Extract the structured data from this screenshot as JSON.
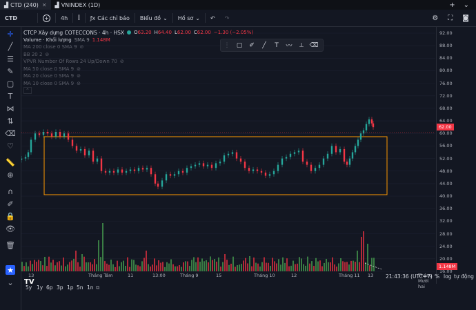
{
  "tabs": [
    {
      "label": "CTD (240)"
    },
    {
      "label": "VNINDEX (1D)"
    }
  ],
  "toolbar": {
    "symbol": "CTD",
    "interval": "4h",
    "indicators": "Các chỉ báo",
    "layout": "Biểu đồ",
    "templates": "Hồ sơ"
  },
  "legend": {
    "title": "CTCP Xây dựng COTECCONS · 4h · HSX",
    "open_label": "O",
    "open": "63.20",
    "high_label": "H",
    "high": "64.40",
    "low_label": "L",
    "low": "62.00",
    "close_label": "C",
    "close": "62.00",
    "change": "−1.30 (−2.05%)",
    "volume_label": "Volume · Khối lượng",
    "volume_sma": "SMA 9",
    "volume_value": "1.148M",
    "ma200": "MA 200 close 0 SMA 9",
    "bb": "BB 20 2",
    "vpvr": "VPVR Number Of Rows 24 Up/Down 70",
    "ma50": "MA 50 close 0 SMA 9",
    "ma20": "MA 20 close 0 SMA 9",
    "ma10": "MA 10 close 0 SMA 9"
  },
  "price_axis": [
    "92.00",
    "88.00",
    "84.00",
    "80.00",
    "76.00",
    "72.00",
    "68.00",
    "64.00",
    "60.00",
    "56.00",
    "52.00",
    "48.00",
    "44.00",
    "40.00",
    "36.00",
    "32.00",
    "28.00",
    "24.00",
    "20.00",
    "16.00"
  ],
  "last_price": "62.00",
  "volume_badge": "1.148M",
  "time_axis": [
    "Tháng Tám",
    "11",
    "13:00",
    "Tháng 9",
    "15",
    "Tháng 10",
    "12",
    "Tháng 11",
    "13",
    "Tháng Mười hai"
  ],
  "time_tick_13": "13",
  "ranges": [
    "5y",
    "1y",
    "6p",
    "3p",
    "1p",
    "5n",
    "1n"
  ],
  "clock": "21:43:36 (UTC+7)",
  "axis_opts": [
    "%",
    "log",
    "tự động"
  ],
  "colors": {
    "up": "#26a69a",
    "down": "#f23645",
    "box": "#ff9800",
    "vol_up": "#3a7d44",
    "vol_down": "#b22a39"
  },
  "chart_data": {
    "type": "candlestick",
    "ylim": [
      16,
      92
    ],
    "last": 62.0
  }
}
